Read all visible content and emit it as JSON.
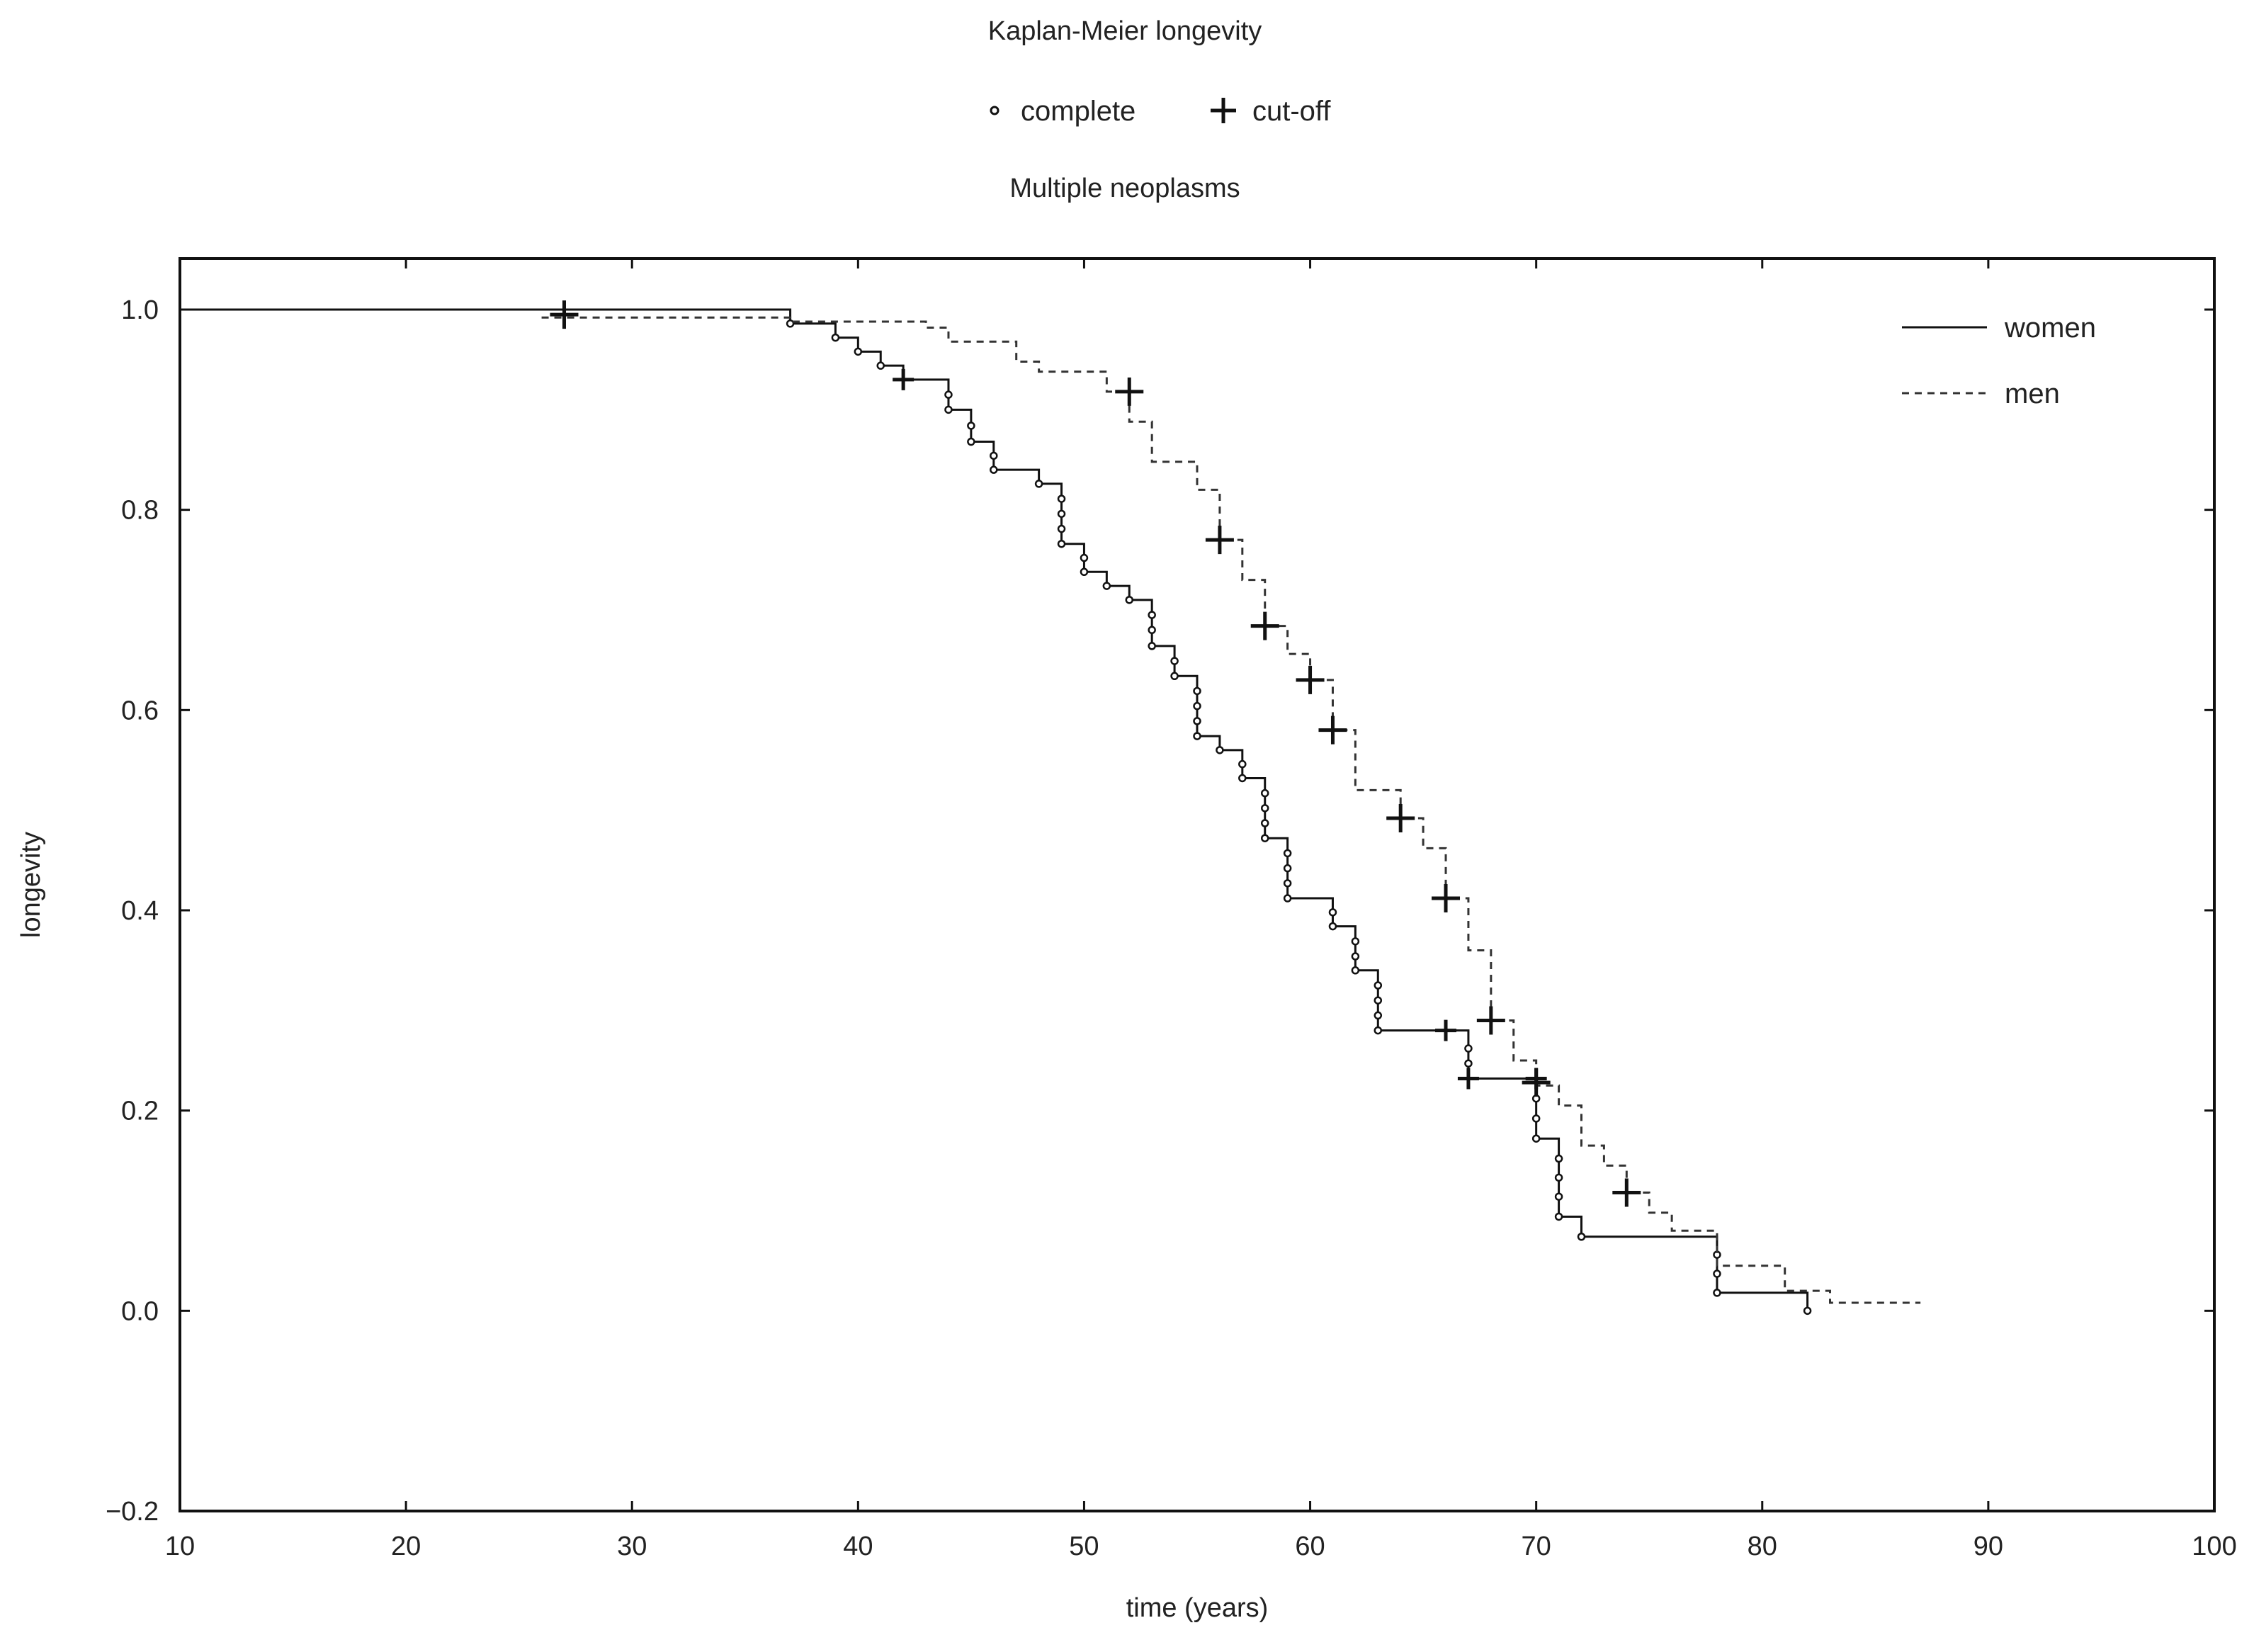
{
  "chart_data": {
    "type": "line",
    "step": true,
    "title": "Kaplan-Meier longevity",
    "subtitle": "Multiple neoplasms",
    "marker_legend": [
      {
        "symbol": "circle",
        "label": "complete"
      },
      {
        "symbol": "plus",
        "label": "cut-off"
      }
    ],
    "xlabel": "time (years)",
    "ylabel": "longevity",
    "xlim": [
      10,
      100
    ],
    "ylim": [
      -0.2,
      1.05
    ],
    "xticks": [
      10,
      20,
      30,
      40,
      50,
      60,
      70,
      80,
      90,
      100
    ],
    "xtick_labels": [
      "10",
      "20",
      "30",
      "40",
      "50",
      "60",
      "70",
      "80",
      "90",
      "100"
    ],
    "yticks": [
      -0.2,
      0.0,
      0.2,
      0.4,
      0.6,
      0.8,
      1.0
    ],
    "ytick_labels": [
      "−0.2",
      "0.0",
      "0.2",
      "0.4",
      "0.6",
      "0.8",
      "1.0"
    ],
    "grid": false,
    "legend_position": "top-right",
    "series": [
      {
        "name": "women",
        "line_style": "solid",
        "color": "#111111",
        "steps": [
          [
            10,
            1.0
          ],
          [
            37,
            0.986
          ],
          [
            39,
            0.972
          ],
          [
            40,
            0.958
          ],
          [
            41,
            0.944
          ],
          [
            42,
            0.93
          ],
          [
            44,
            0.9
          ],
          [
            45,
            0.868
          ],
          [
            46,
            0.84
          ],
          [
            48,
            0.826
          ],
          [
            49,
            0.766
          ],
          [
            50,
            0.738
          ],
          [
            51,
            0.724
          ],
          [
            52,
            0.71
          ],
          [
            53,
            0.664
          ],
          [
            54,
            0.634
          ],
          [
            55,
            0.574
          ],
          [
            56,
            0.56
          ],
          [
            57,
            0.532
          ],
          [
            58,
            0.472
          ],
          [
            59,
            0.412
          ],
          [
            61,
            0.384
          ],
          [
            62,
            0.34
          ],
          [
            63,
            0.28
          ],
          [
            67,
            0.232
          ],
          [
            70,
            0.172
          ],
          [
            71,
            0.094
          ],
          [
            72,
            0.074
          ],
          [
            78,
            0.018
          ],
          [
            82,
            0.0
          ]
        ],
        "end_x": 82,
        "complete_events": [
          [
            37,
            0.986
          ],
          [
            39,
            0.972
          ],
          [
            40,
            0.958
          ],
          [
            41,
            0.944
          ],
          [
            44,
            0.915
          ],
          [
            44,
            0.9
          ],
          [
            45,
            0.884
          ],
          [
            45,
            0.868
          ],
          [
            46,
            0.854
          ],
          [
            46,
            0.84
          ],
          [
            48,
            0.826
          ],
          [
            49,
            0.811
          ],
          [
            49,
            0.796
          ],
          [
            49,
            0.781
          ],
          [
            49,
            0.766
          ],
          [
            50,
            0.752
          ],
          [
            50,
            0.738
          ],
          [
            51,
            0.724
          ],
          [
            52,
            0.71
          ],
          [
            53,
            0.695
          ],
          [
            53,
            0.68
          ],
          [
            53,
            0.664
          ],
          [
            54,
            0.649
          ],
          [
            54,
            0.634
          ],
          [
            55,
            0.619
          ],
          [
            55,
            0.604
          ],
          [
            55,
            0.589
          ],
          [
            55,
            0.574
          ],
          [
            56,
            0.56
          ],
          [
            57,
            0.546
          ],
          [
            57,
            0.532
          ],
          [
            58,
            0.517
          ],
          [
            58,
            0.502
          ],
          [
            58,
            0.487
          ],
          [
            58,
            0.472
          ],
          [
            59,
            0.457
          ],
          [
            59,
            0.442
          ],
          [
            59,
            0.427
          ],
          [
            59,
            0.412
          ],
          [
            61,
            0.398
          ],
          [
            61,
            0.384
          ],
          [
            62,
            0.369
          ],
          [
            62,
            0.354
          ],
          [
            62,
            0.34
          ],
          [
            63,
            0.325
          ],
          [
            63,
            0.31
          ],
          [
            63,
            0.295
          ],
          [
            63,
            0.28
          ],
          [
            67,
            0.262
          ],
          [
            67,
            0.247
          ],
          [
            70,
            0.212
          ],
          [
            70,
            0.192
          ],
          [
            70,
            0.172
          ],
          [
            71,
            0.152
          ],
          [
            71,
            0.133
          ],
          [
            71,
            0.114
          ],
          [
            71,
            0.094
          ],
          [
            72,
            0.074
          ],
          [
            78,
            0.056
          ],
          [
            78,
            0.037
          ],
          [
            78,
            0.018
          ],
          [
            82,
            0.0
          ]
        ],
        "cutoff_events": [
          [
            42,
            0.93
          ],
          [
            66,
            0.28
          ],
          [
            67,
            0.232
          ],
          [
            70,
            0.232
          ]
        ]
      },
      {
        "name": "men",
        "line_style": "dashed",
        "color": "#333333",
        "steps": [
          [
            26,
            0.992
          ],
          [
            37,
            0.988
          ],
          [
            43,
            0.982
          ],
          [
            44,
            0.968
          ],
          [
            47,
            0.948
          ],
          [
            48,
            0.938
          ],
          [
            51,
            0.918
          ],
          [
            52,
            0.888
          ],
          [
            53,
            0.848
          ],
          [
            55,
            0.82
          ],
          [
            56,
            0.77
          ],
          [
            57,
            0.73
          ],
          [
            58,
            0.684
          ],
          [
            59,
            0.656
          ],
          [
            60,
            0.63
          ],
          [
            61,
            0.58
          ],
          [
            62,
            0.52
          ],
          [
            64,
            0.492
          ],
          [
            65,
            0.462
          ],
          [
            66,
            0.412
          ],
          [
            67,
            0.36
          ],
          [
            68,
            0.29
          ],
          [
            69,
            0.25
          ],
          [
            70,
            0.225
          ],
          [
            71,
            0.205
          ],
          [
            72,
            0.165
          ],
          [
            73,
            0.145
          ],
          [
            74,
            0.118
          ],
          [
            75,
            0.098
          ],
          [
            76,
            0.08
          ],
          [
            78,
            0.045
          ],
          [
            81,
            0.02
          ],
          [
            83,
            0.008
          ]
        ],
        "end_x": 87,
        "complete_events": [],
        "cutoff_events": [
          [
            27,
            0.995
          ],
          [
            52,
            0.918
          ],
          [
            56,
            0.77
          ],
          [
            58,
            0.684
          ],
          [
            60,
            0.63
          ],
          [
            61,
            0.58
          ],
          [
            64,
            0.492
          ],
          [
            66,
            0.412
          ],
          [
            68,
            0.29
          ],
          [
            70,
            0.228
          ],
          [
            74,
            0.118
          ]
        ]
      }
    ]
  }
}
